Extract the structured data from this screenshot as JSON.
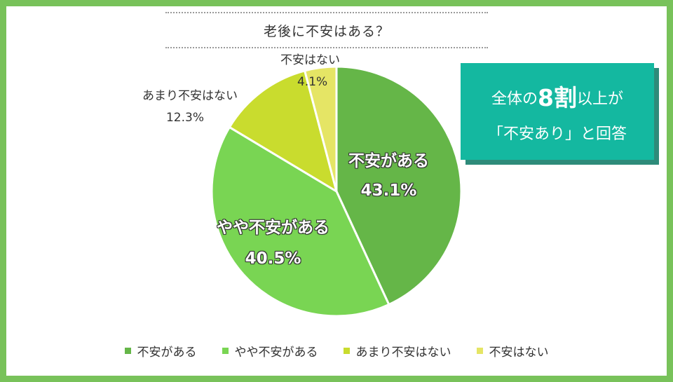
{
  "chart_data": {
    "type": "pie",
    "title": "老後に不安はある？",
    "slices": [
      {
        "label": "不安がある",
        "value": 43.1,
        "value_label": "43.1%",
        "color": "#65b648"
      },
      {
        "label": "やや不安がある",
        "value": 40.5,
        "value_label": "40.5%",
        "color": "#79d553"
      },
      {
        "label": "あまり不安はない",
        "value": 12.3,
        "value_label": "12.3%",
        "color": "#c9dc2e"
      },
      {
        "label": "不安はない",
        "value": 4.1,
        "value_label": "4.1%",
        "color": "#e5e565"
      }
    ],
    "legend_position": "bottom"
  },
  "callout": {
    "line1_pre": "全体の",
    "line1_big": "8割",
    "line1_post": "以上が",
    "line2": "「不安あり」と回答",
    "color": "#14b8a0"
  },
  "frame_color": "#78c25a"
}
